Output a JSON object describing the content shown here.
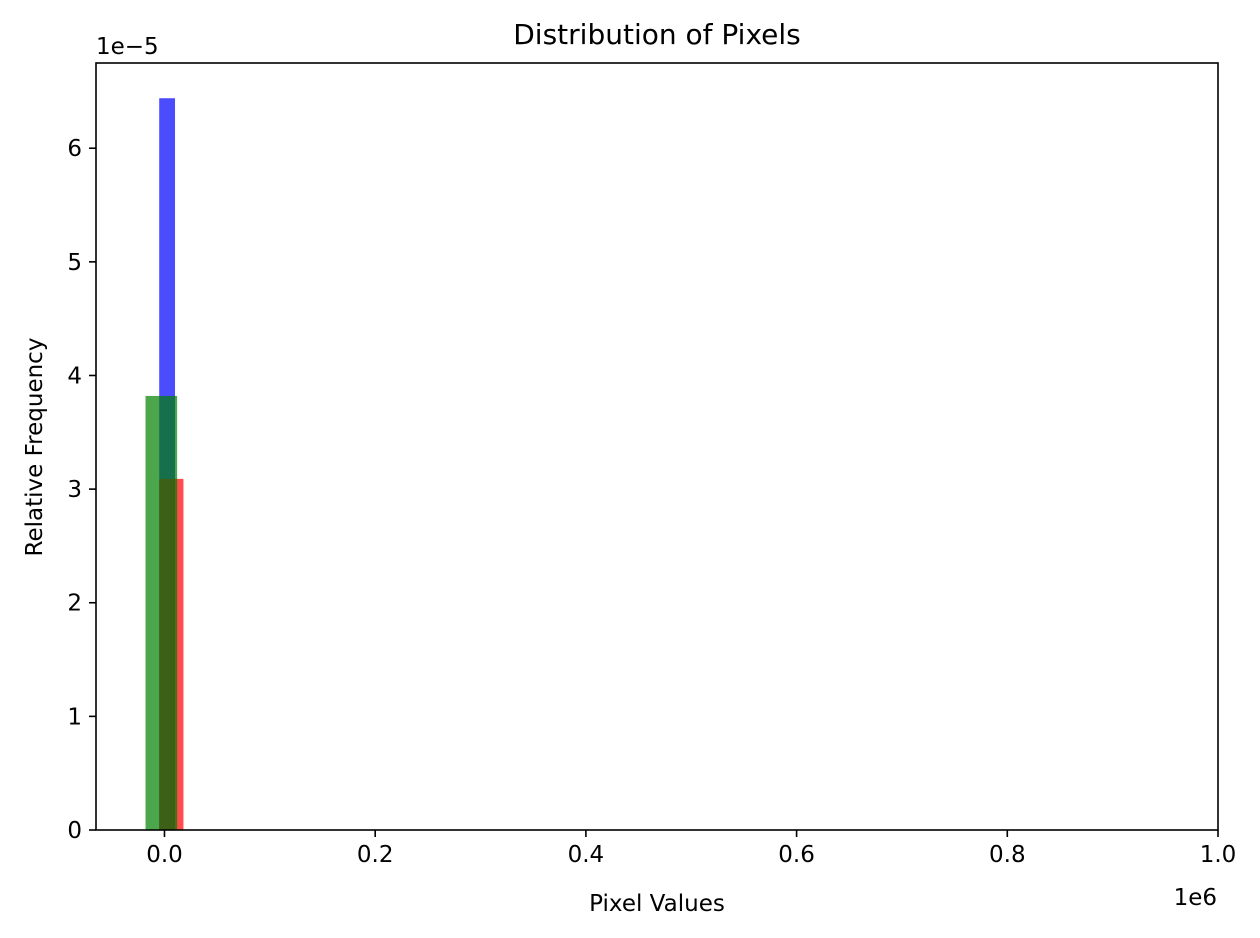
{
  "chart_data": {
    "type": "bar",
    "title": "Distribution of Pixels",
    "xlabel": "Pixel Values",
    "ylabel": "Relative Frequency",
    "x_offset_text": "1e6",
    "y_offset_text": "1e−5",
    "xlim": [
      -0.065,
      1.0
    ],
    "ylim": [
      0,
      6.75
    ],
    "x_ticks": [
      0.0,
      0.2,
      0.4,
      0.6,
      0.8,
      1.0
    ],
    "x_tick_labels": [
      "0.0",
      "0.2",
      "0.4",
      "0.6",
      "0.8",
      "1.0"
    ],
    "y_ticks": [
      0,
      1,
      2,
      3,
      4,
      5,
      6
    ],
    "y_tick_labels": [
      "0",
      "1",
      "2",
      "3",
      "4",
      "5",
      "6"
    ],
    "grid": false,
    "legend": "none",
    "series": [
      {
        "color": "#0000ff",
        "alpha": 0.7,
        "x0": -0.005,
        "x1": 0.01,
        "value": 6.44
      },
      {
        "color": "#ff0000",
        "alpha": 0.7,
        "x0": -0.005,
        "x1": 0.018,
        "value": 3.09
      },
      {
        "color": "#008000",
        "alpha": 0.7,
        "x0": -0.018,
        "x1": 0.012,
        "value": 3.82
      }
    ]
  }
}
